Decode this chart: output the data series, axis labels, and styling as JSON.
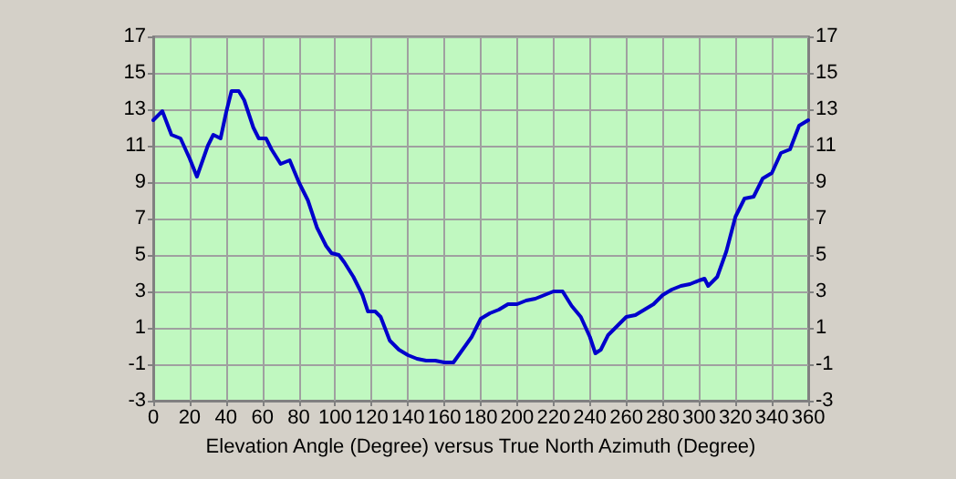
{
  "chart_data": {
    "type": "line",
    "xlabel": "Elevation Angle (Degree) versus True North Azimuth (Degree)",
    "x": [
      0,
      5,
      10,
      15,
      20,
      24,
      30,
      33,
      37,
      40,
      43,
      47,
      50,
      55,
      58,
      62,
      65,
      70,
      75,
      80,
      85,
      90,
      95,
      98,
      102,
      105,
      110,
      115,
      118,
      122,
      125,
      130,
      135,
      140,
      145,
      150,
      155,
      160,
      165,
      170,
      175,
      180,
      185,
      190,
      195,
      200,
      205,
      210,
      215,
      220,
      225,
      230,
      235,
      240,
      243,
      246,
      250,
      255,
      260,
      265,
      270,
      275,
      280,
      285,
      290,
      295,
      300,
      303,
      305,
      310,
      315,
      320,
      325,
      330,
      335,
      340,
      345,
      350,
      355,
      360
    ],
    "series": [
      {
        "color": "#0000cc",
        "values": [
          12.4,
          12.9,
          11.6,
          11.4,
          10.3,
          9.3,
          11.0,
          11.6,
          11.4,
          12.8,
          14.0,
          14.0,
          13.5,
          12.0,
          11.4,
          11.4,
          10.8,
          10.0,
          10.2,
          9.0,
          8.0,
          6.5,
          5.5,
          5.1,
          5.0,
          4.6,
          3.8,
          2.8,
          1.9,
          1.9,
          1.6,
          0.3,
          -0.2,
          -0.5,
          -0.7,
          -0.8,
          -0.8,
          -0.9,
          -0.9,
          -0.2,
          0.5,
          1.5,
          1.8,
          2.0,
          2.3,
          2.3,
          2.5,
          2.6,
          2.8,
          3.0,
          3.0,
          2.2,
          1.6,
          0.5,
          -0.4,
          -0.2,
          0.6,
          1.1,
          1.6,
          1.7,
          2.0,
          2.3,
          2.8,
          3.1,
          3.3,
          3.4,
          3.6,
          3.7,
          3.3,
          3.8,
          5.2,
          7.1,
          8.1,
          8.2,
          9.2,
          9.5,
          10.6,
          10.8,
          12.1,
          12.4
        ]
      }
    ],
    "xlim": [
      0,
      360
    ],
    "xticks": [
      0,
      20,
      40,
      60,
      80,
      100,
      120,
      140,
      160,
      180,
      200,
      220,
      240,
      260,
      280,
      300,
      320,
      340,
      360
    ],
    "ylim": [
      -3,
      17
    ],
    "yticks": [
      -3,
      -1,
      1,
      3,
      5,
      7,
      9,
      11,
      13,
      15,
      17
    ],
    "y2lim": [
      -3,
      17
    ],
    "y2ticks": [
      -3,
      -1,
      1,
      3,
      5,
      7,
      9,
      11,
      13,
      15,
      17
    ],
    "grid": true,
    "marker": "none",
    "line_style": "solid"
  }
}
